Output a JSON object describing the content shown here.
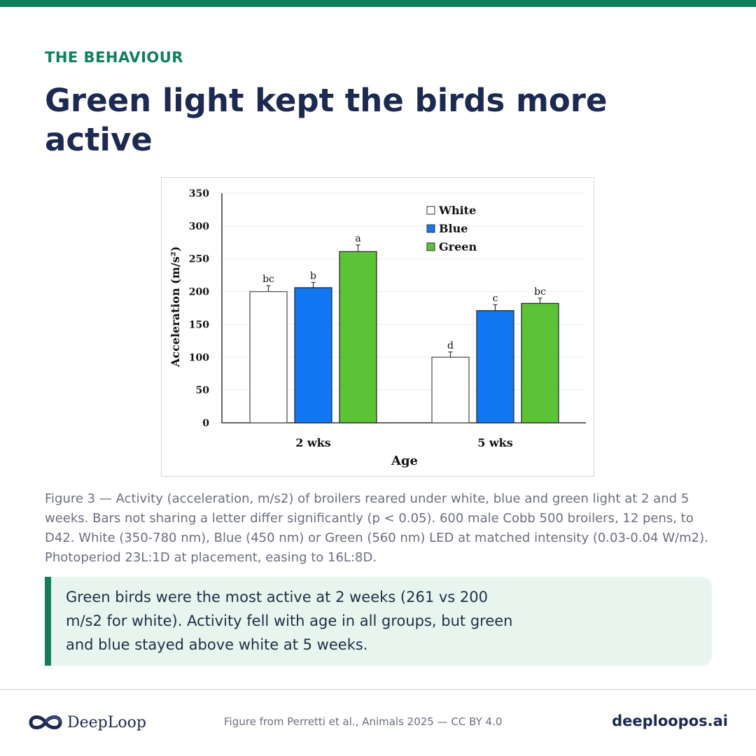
{
  "header": {
    "eyebrow": "THE BEHAVIOUR",
    "title": "Green light kept the birds more active"
  },
  "colors": {
    "accent": "#137f5a",
    "navy": "#1c2951",
    "white_bar": "#ffffff",
    "blue_bar": "#1177f0",
    "green_bar": "#5cc236"
  },
  "chart_data": {
    "type": "bar",
    "categories": [
      "2 wks",
      "5 wks"
    ],
    "series": [
      {
        "name": "White",
        "color": "#ffffff",
        "values": [
          200,
          100
        ],
        "errors": [
          9,
          8
        ],
        "letters": [
          "bc",
          "d"
        ]
      },
      {
        "name": "Blue",
        "color": "#1177f0",
        "values": [
          206,
          171
        ],
        "errors": [
          8,
          9
        ],
        "letters": [
          "b",
          "c"
        ]
      },
      {
        "name": "Green",
        "color": "#5cc236",
        "values": [
          261,
          182
        ],
        "errors": [
          10,
          8
        ],
        "letters": [
          "a",
          "bc"
        ]
      }
    ],
    "xlabel": "Age",
    "ylabel": "Acceleration (m/s²)",
    "ylim": [
      0,
      350
    ],
    "yticks": [
      0,
      50,
      100,
      150,
      200,
      250,
      300,
      350
    ],
    "grid": true,
    "legend": "top-right"
  },
  "caption": "Figure 3 — Activity (acceleration, m/s2) of broilers reared under white, blue and green light at 2 and 5 weeks. Bars not sharing a letter differ significantly (p < 0.05). 600 male Cobb 500 broilers, 12 pens, to D42. White (350-780 nm), Blue (450 nm) or Green (560 nm) LED at matched intensity (0.03-0.04 W/m2). Photoperiod 23L:1D at placement, easing to 16L:8D.",
  "callout": "Green birds were the most active at 2 weeks (261 vs 200 m/s2 for white). Activity fell with age in all groups, but green and blue stayed above white at 5 weeks.",
  "footer": {
    "logo_text": "DeepLoop",
    "source": "Figure from Perretti et al., Animals 2025 — CC BY 4.0",
    "site": "deeploopos.ai"
  }
}
